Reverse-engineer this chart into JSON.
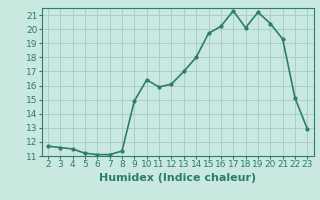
{
  "x": [
    2,
    3,
    4,
    5,
    6,
    7,
    8,
    9,
    10,
    11,
    12,
    13,
    14,
    15,
    16,
    17,
    18,
    19,
    20,
    21,
    22,
    23
  ],
  "y": [
    11.7,
    11.6,
    11.5,
    11.2,
    11.1,
    11.1,
    11.35,
    14.9,
    16.4,
    15.9,
    16.1,
    17.0,
    18.0,
    19.7,
    20.2,
    21.3,
    20.1,
    21.2,
    20.4,
    19.3,
    15.1,
    12.9
  ],
  "line_color": "#2d7d6e",
  "marker": ".",
  "marker_size": 4,
  "bg_color": "#c8e8e0",
  "grid_color": "#a8cfc8",
  "xlabel": "Humidex (Indice chaleur)",
  "xlim": [
    1.5,
    23.5
  ],
  "ylim": [
    11,
    21.5
  ],
  "yticks": [
    11,
    12,
    13,
    14,
    15,
    16,
    17,
    18,
    19,
    20,
    21
  ],
  "xticks": [
    2,
    3,
    4,
    5,
    6,
    7,
    8,
    9,
    10,
    11,
    12,
    13,
    14,
    15,
    16,
    17,
    18,
    19,
    20,
    21,
    22,
    23
  ],
  "tick_label_size": 6.5,
  "xlabel_size": 8,
  "line_width": 1.2
}
